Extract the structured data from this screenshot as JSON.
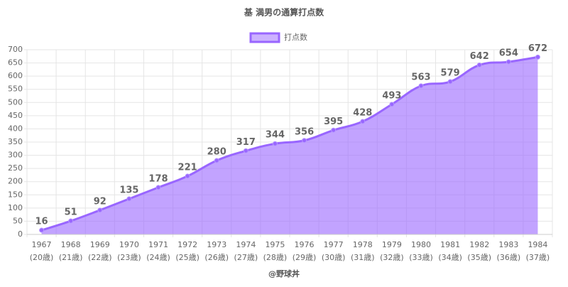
{
  "chart_data": {
    "type": "line",
    "title": "基 満男の通算打点数",
    "categories": [
      [
        "1967",
        "(20歳)"
      ],
      [
        "1968",
        "(21歳)"
      ],
      [
        "1969",
        "(22歳)"
      ],
      [
        "1970",
        "(23歳)"
      ],
      [
        "1971",
        "(24歳)"
      ],
      [
        "1972",
        "(25歳)"
      ],
      [
        "1973",
        "(26歳)"
      ],
      [
        "1974",
        "(27歳)"
      ],
      [
        "1975",
        "(28歳)"
      ],
      [
        "1976",
        "(29歳)"
      ],
      [
        "1977",
        "(30歳)"
      ],
      [
        "1978",
        "(31歳)"
      ],
      [
        "1979",
        "(32歳)"
      ],
      [
        "1980",
        "(33歳)"
      ],
      [
        "1981",
        "(34歳)"
      ],
      [
        "1982",
        "(35歳)"
      ],
      [
        "1983",
        "(36歳)"
      ],
      [
        "1984",
        "(37歳)"
      ]
    ],
    "series": [
      {
        "name": "打点数",
        "color": "#9966ff",
        "values": [
          16,
          51,
          92,
          135,
          178,
          221,
          280,
          317,
          344,
          356,
          395,
          428,
          493,
          563,
          579,
          642,
          654,
          672
        ]
      }
    ],
    "ylim": [
      0,
      700
    ],
    "yticks": [
      0,
      50,
      100,
      150,
      200,
      250,
      300,
      350,
      400,
      450,
      500,
      550,
      600,
      650,
      700
    ],
    "grid": true,
    "credit": "@野球丼"
  }
}
